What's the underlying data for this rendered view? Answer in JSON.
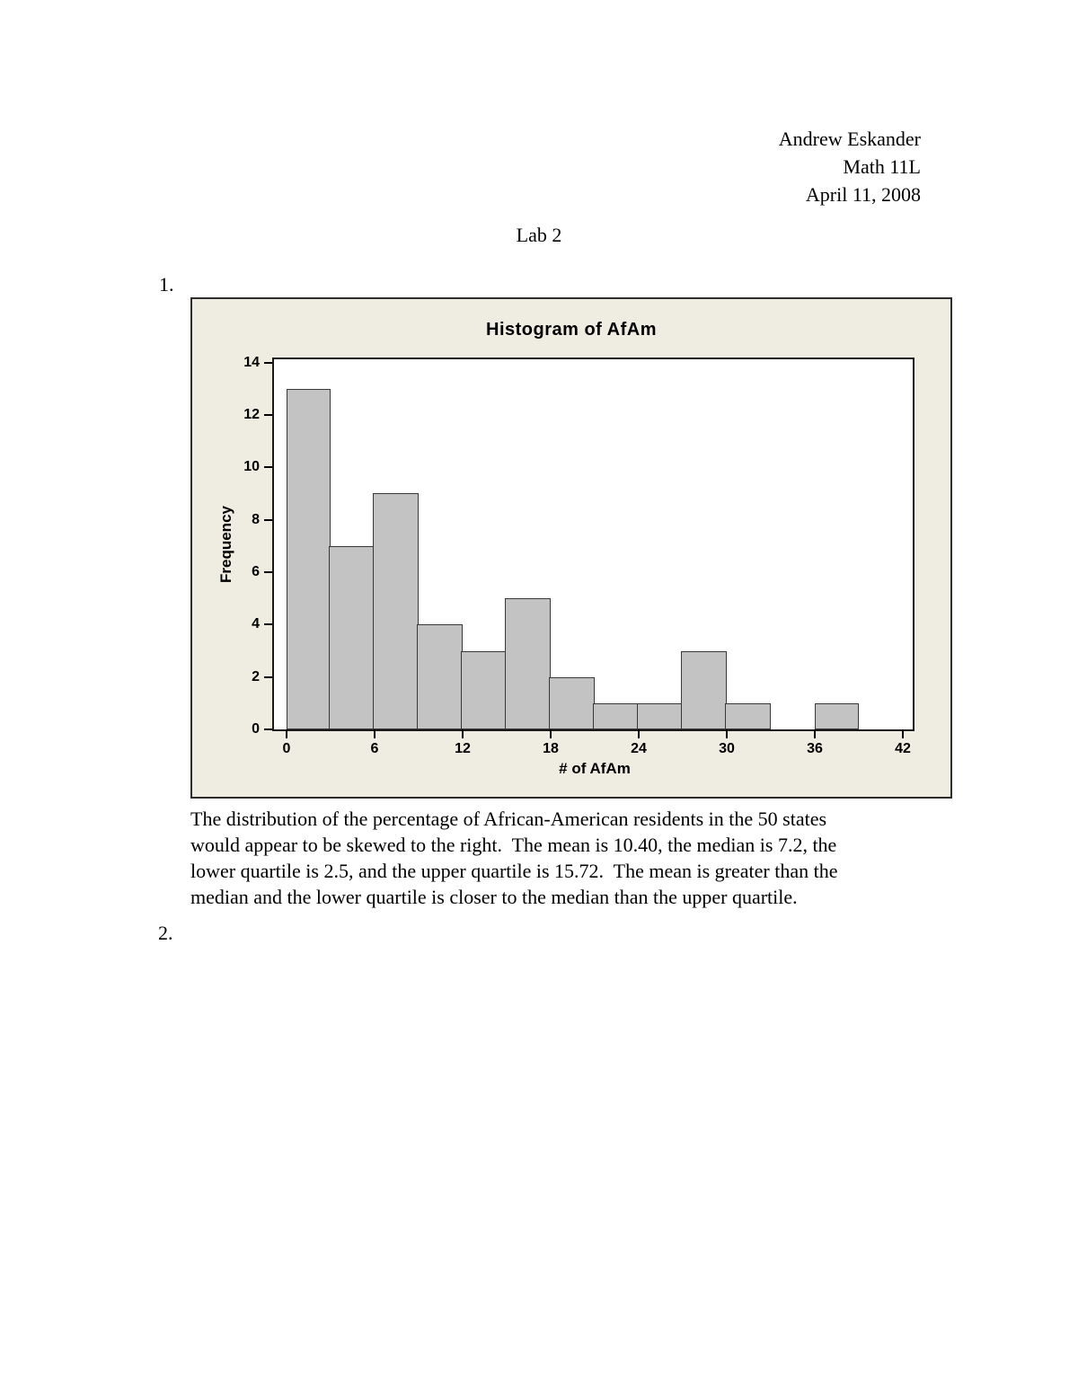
{
  "document": {
    "header_lines": [
      "Andrew Eskander",
      "Math 11L",
      "April 11, 2008"
    ],
    "title": "Lab 2",
    "problem_numbers": {
      "first": "1.",
      "second": "2."
    },
    "analysis_lines": [
      "The distribution of the percentage of African-American residents in the 50 states",
      "would appear to be skewed to the right.  The mean is 10.40, the median is 7.2, the",
      "lower quartile is 2.5, and the upper quartile is 15.72.  The mean is greater than the",
      "median and the lower quartile is closer to the median than the upper quartile."
    ]
  },
  "chart_data": {
    "type": "bar",
    "subtype": "histogram",
    "title": "Histogram of AfAm",
    "xlabel": "# of AfAm",
    "ylabel": "Frequency",
    "bin_start": 0,
    "bin_width": 3,
    "counts": [
      13,
      7,
      9,
      4,
      3,
      5,
      2,
      1,
      1,
      3,
      1,
      0,
      1,
      0
    ],
    "total_count": 50,
    "x_ticks": [
      0,
      6,
      12,
      18,
      24,
      30,
      36,
      42
    ],
    "y_ticks": [
      0,
      2,
      4,
      6,
      8,
      10,
      12,
      14
    ],
    "xlim": [
      -0.9,
      43
    ],
    "ylim": [
      0,
      14.1
    ],
    "grid": false,
    "legend_position": "none",
    "colors": {
      "figure_background": "#efece1",
      "plot_background": "#ffffff",
      "bar_fill": "#c3c3c3",
      "bar_border": "#383838",
      "axis": "#000000"
    }
  }
}
